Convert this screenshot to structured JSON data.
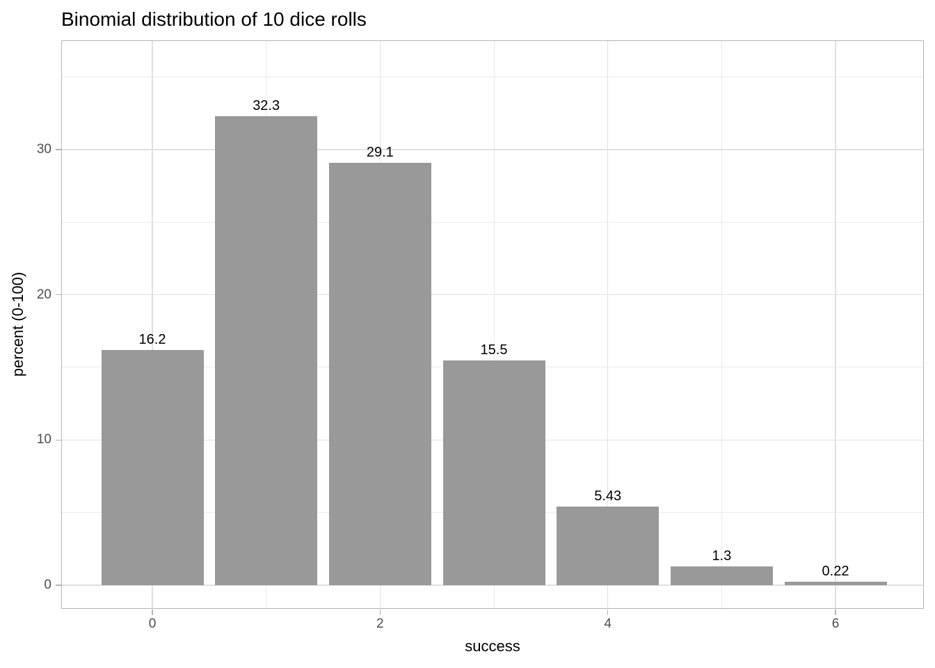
{
  "chart_data": {
    "type": "bar",
    "title": "Binomial distribution of 10 dice rolls",
    "xlabel": "success",
    "ylabel": "percent (0-100)",
    "categories": [
      0,
      1,
      2,
      3,
      4,
      5,
      6
    ],
    "values": [
      16.2,
      32.3,
      29.1,
      15.5,
      5.43,
      1.3,
      0.22
    ],
    "bar_labels": [
      "16.2",
      "32.3",
      "29.1",
      "15.5",
      "5.43",
      "1.3",
      "0.22"
    ],
    "x_major_ticks": [
      0,
      2,
      4,
      6
    ],
    "x_minor_gridlines": [
      1,
      3,
      5
    ],
    "y_major_ticks": [
      0,
      10,
      20,
      30
    ],
    "y_minor_gridlines": [
      5,
      15,
      25,
      35
    ],
    "ylim": [
      -1.7,
      37.4
    ],
    "xlim": [
      -0.8,
      6.6
    ],
    "grid": true,
    "legend": "none",
    "colors": {
      "bar_fill": "#999999",
      "panel_border": "#b3b3b3",
      "grid_major": "#e0e0e0",
      "grid_minor": "#ebebeb",
      "tick_mark": "#b3b3b3",
      "tick_label_color": "#4d4d4d",
      "text_color": "#000000",
      "background": "#ffffff"
    }
  }
}
